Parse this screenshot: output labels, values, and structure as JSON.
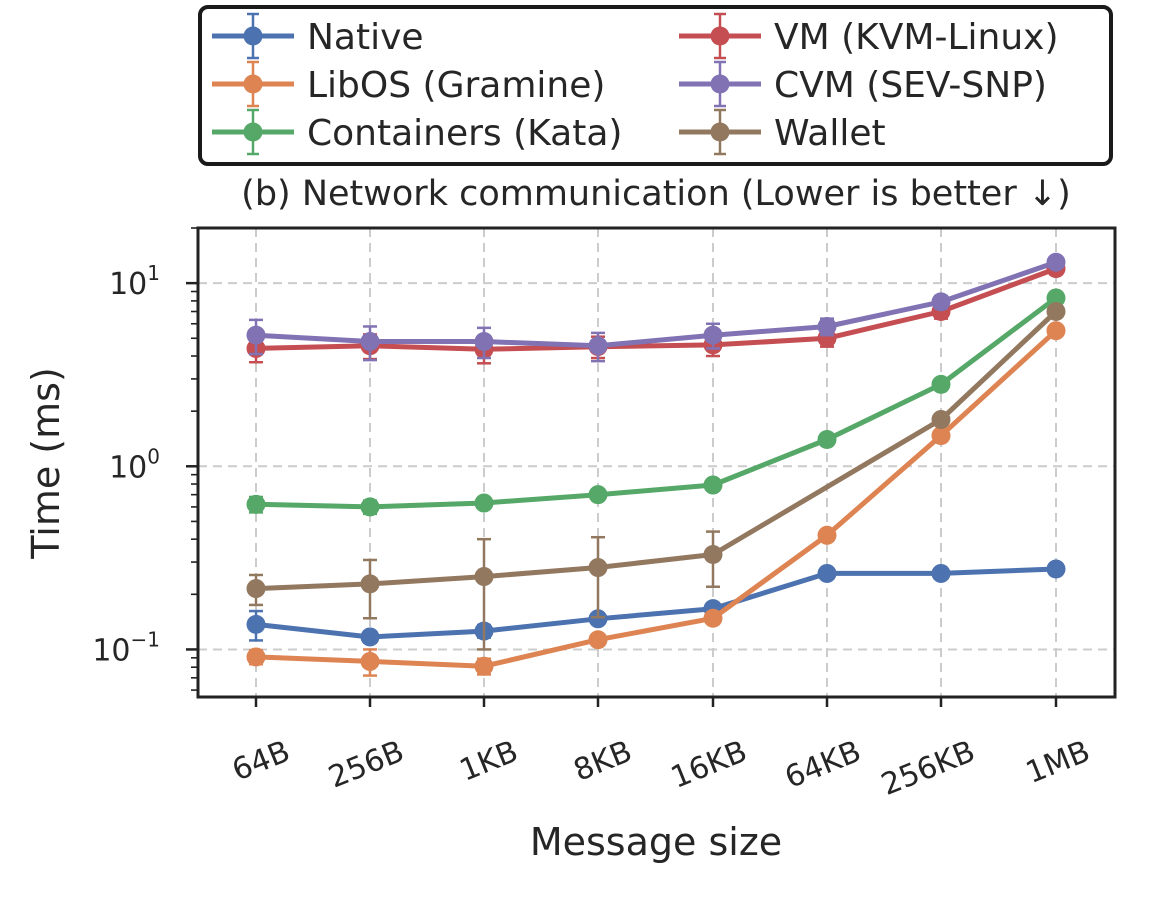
{
  "chart_data": {
    "type": "line",
    "title": "(b) Network communication (Lower is better ↓)",
    "title_color": "#000080",
    "xlabel": "Message size",
    "ylabel": "Time (ms)",
    "yscale": "log",
    "ylim": [
      0.055,
      20
    ],
    "categories": [
      "64B",
      "256B",
      "1KB",
      "8KB",
      "16KB",
      "64KB",
      "256KB",
      "1MB"
    ],
    "ytick_labels": [
      {
        "value": 0.1,
        "base": "10",
        "exp": "−1"
      },
      {
        "value": 1,
        "base": "10",
        "exp": "0"
      },
      {
        "value": 10,
        "base": "10",
        "exp": "1"
      }
    ],
    "grid": true,
    "legend_position": "top-center",
    "series": [
      {
        "name": "Native",
        "color": "#4c72b0",
        "values": [
          0.137,
          0.117,
          0.126,
          0.147,
          0.167,
          0.26,
          0.26,
          0.275
        ],
        "err": [
          0.025,
          0.008,
          0.01,
          0.007,
          0.007,
          0.01,
          0.01,
          0.01
        ]
      },
      {
        "name": "LibOS (Gramine)",
        "color": "#dd8452",
        "values": [
          0.091,
          0.086,
          0.081,
          0.113,
          0.148,
          0.42,
          1.47,
          5.5
        ],
        "err": [
          0.008,
          0.014,
          0.008,
          0.005,
          0.005,
          0.02,
          0.08,
          0.3
        ]
      },
      {
        "name": "Containers (Kata)",
        "color": "#55a868",
        "values": [
          0.62,
          0.6,
          0.63,
          0.7,
          0.79,
          1.4,
          2.8,
          8.3
        ],
        "err": [
          0.06,
          0.05,
          0.04,
          0.03,
          0.03,
          0.05,
          0.1,
          0.4
        ]
      },
      {
        "name": "VM (KVM-Linux)",
        "color": "#c44e52",
        "values": [
          4.4,
          4.55,
          4.35,
          4.5,
          4.6,
          5.0,
          7.0,
          12.0
        ],
        "err": [
          0.7,
          0.7,
          0.7,
          0.6,
          0.6,
          0.5,
          0.6,
          0.8
        ]
      },
      {
        "name": "CVM (SEV-SNP)",
        "color": "#8172b3",
        "values": [
          5.2,
          4.8,
          4.8,
          4.55,
          5.2,
          5.8,
          7.9,
          13.0
        ],
        "err": [
          1.1,
          1.0,
          0.9,
          0.8,
          0.8,
          0.6,
          0.6,
          0.8
        ]
      },
      {
        "name": "Wallet",
        "color": "#937860",
        "values": [
          0.215,
          0.228,
          0.25,
          0.28,
          0.33,
          null,
          1.8,
          7.0
        ],
        "err": [
          0.04,
          0.08,
          0.15,
          0.13,
          0.11,
          null,
          0.08,
          0.3
        ]
      }
    ]
  }
}
